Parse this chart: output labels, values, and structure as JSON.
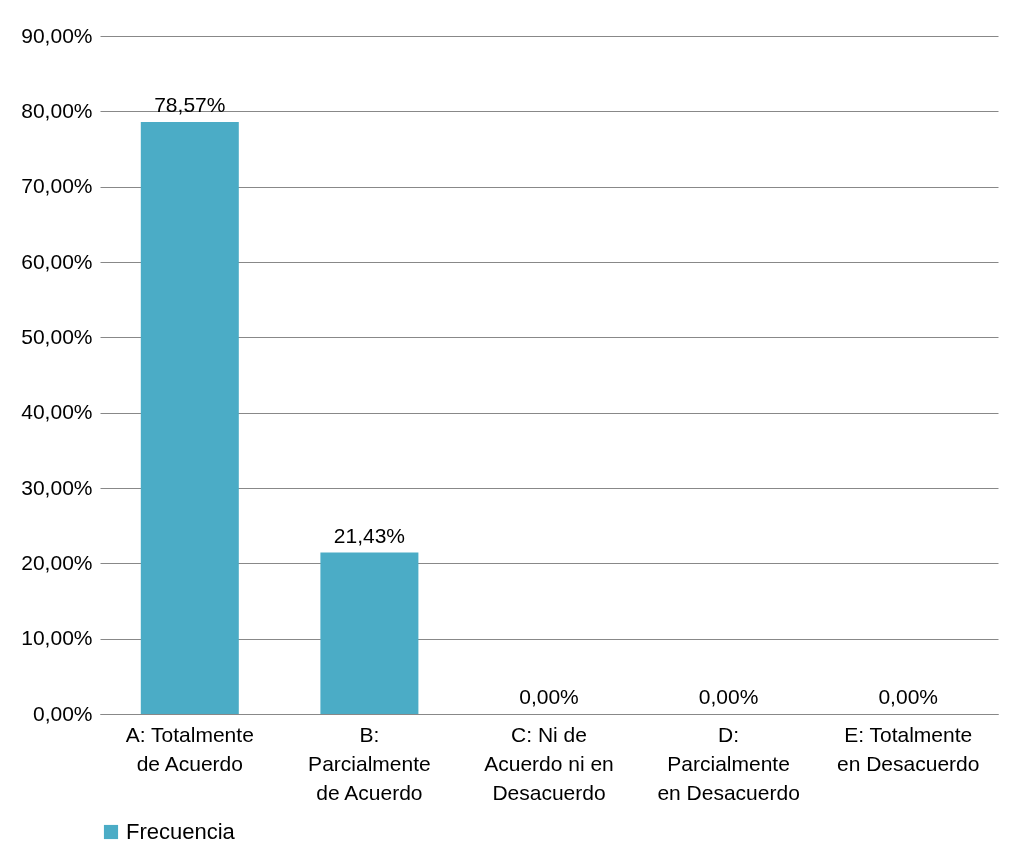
{
  "chart_data": {
    "type": "bar",
    "categories": [
      "A: Totalmente de Acuerdo",
      "B: Parcialmente de Acuerdo",
      "C: Ni de Acuerdo ni en Desacuerdo",
      "D: Parcialmente en Desacuerdo",
      "E: Totalmente en Desacuerdo"
    ],
    "series": [
      {
        "name": "Frecuencia",
        "color": "#4bacc6",
        "values": [
          78.57,
          21.43,
          0,
          0,
          0
        ],
        "value_labels": [
          "78,57%",
          "21,43%",
          "0,00%",
          "0,00%",
          "0,00%"
        ]
      }
    ],
    "ylim": [
      0,
      90
    ],
    "yticks": [
      {
        "value": 0,
        "label": "0,00%"
      },
      {
        "value": 10,
        "label": "10,00%"
      },
      {
        "value": 20,
        "label": "20,00%"
      },
      {
        "value": 30,
        "label": "30,00%"
      },
      {
        "value": 40,
        "label": "40,00%"
      },
      {
        "value": 50,
        "label": "50,00%"
      },
      {
        "value": 60,
        "label": "60,00%"
      },
      {
        "value": 70,
        "label": "70,00%"
      },
      {
        "value": 80,
        "label": "80,00%"
      },
      {
        "value": 90,
        "label": "90,00%"
      }
    ],
    "grid": "y",
    "legend": "bottom"
  }
}
